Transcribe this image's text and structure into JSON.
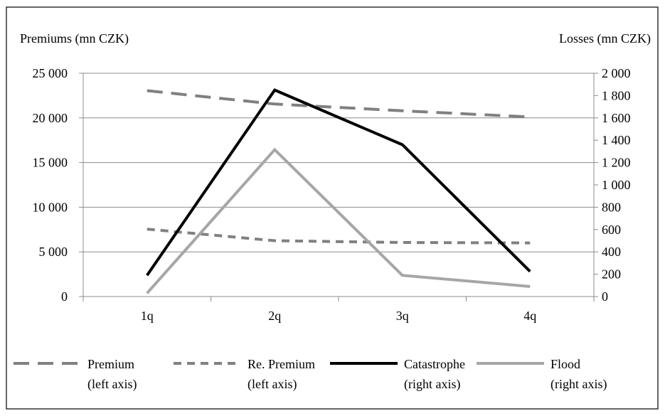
{
  "chart_data": {
    "type": "line",
    "categories": [
      "1q",
      "2q",
      "3q",
      "4q"
    ],
    "left_axis": {
      "label": "Premiums (mn CZK)",
      "range": [
        0,
        25000
      ],
      "ticks": [
        0,
        5000,
        10000,
        15000,
        20000,
        25000
      ],
      "tick_labels": [
        "0",
        "5 000",
        "10 000",
        "15 000",
        "20 000",
        "25 000"
      ]
    },
    "right_axis": {
      "label": "Losses (mn CZK)",
      "range": [
        0,
        2000
      ],
      "ticks": [
        0,
        200,
        400,
        600,
        800,
        1000,
        1200,
        1400,
        1600,
        1800,
        2000
      ],
      "tick_labels": [
        "0",
        "200",
        "400",
        "600",
        "800",
        "1 000",
        "1 200",
        "1 400",
        "1 600",
        "1 800",
        "2 000"
      ]
    },
    "grid": true,
    "legend_position": "bottom",
    "series": [
      {
        "name": "Premium",
        "note": "(left axis)",
        "axis": "left",
        "values": [
          23050,
          21550,
          20800,
          20100
        ],
        "color": "#808080",
        "dash": "long"
      },
      {
        "name": "Re. Premium",
        "note": "(left axis)",
        "axis": "left",
        "values": [
          7550,
          6250,
          6050,
          6000
        ],
        "color": "#808080",
        "dash": "short"
      },
      {
        "name": "Catastrophe",
        "note": "(right axis)",
        "axis": "right",
        "values": [
          190,
          1850,
          1360,
          225
        ],
        "color": "#000000",
        "dash": "solid"
      },
      {
        "name": "Flood",
        "note": "(right axis)",
        "axis": "right",
        "values": [
          30,
          1315,
          190,
          90
        ],
        "color": "#a6a6a6",
        "dash": "solid"
      }
    ]
  }
}
